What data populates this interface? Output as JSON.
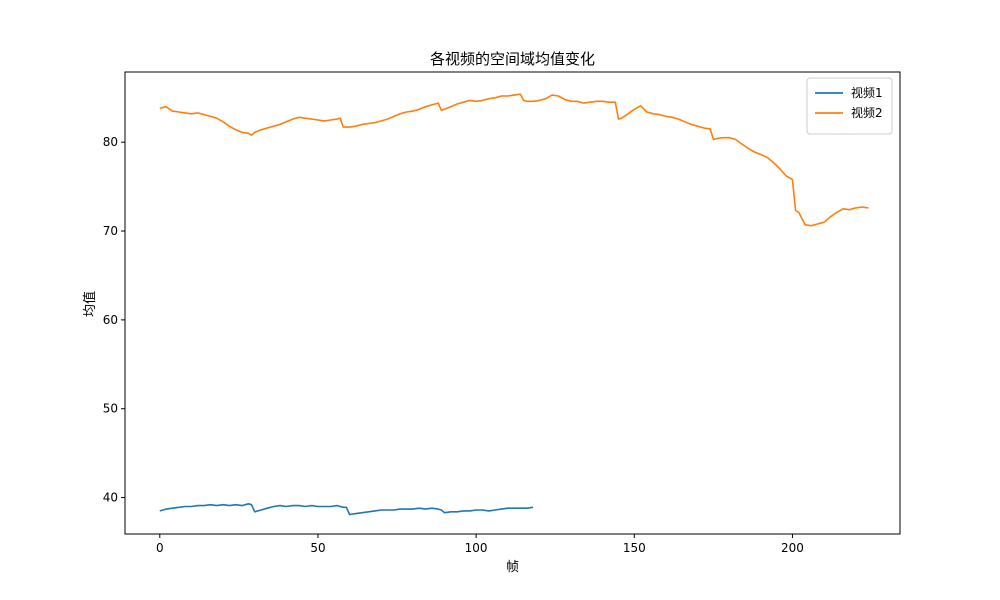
{
  "chart_data": {
    "type": "line",
    "title": "各视频的空间域均值变化",
    "xlabel": "帧",
    "ylabel": "均值",
    "xlim": [
      -11,
      234
    ],
    "ylim": [
      35.9,
      87.9
    ],
    "xticks": [
      0,
      50,
      100,
      150,
      200
    ],
    "yticks": [
      40,
      50,
      60,
      70,
      80
    ],
    "grid": false,
    "legend_position": "top-right",
    "series": [
      {
        "name": "视频1",
        "color": "#1f77b4",
        "x": [
          0,
          2,
          4,
          6,
          8,
          10,
          12,
          14,
          16,
          18,
          20,
          22,
          24,
          26,
          28,
          29,
          30,
          32,
          34,
          36,
          38,
          40,
          42,
          44,
          46,
          48,
          50,
          52,
          54,
          56,
          58,
          59,
          60,
          62,
          64,
          66,
          68,
          70,
          72,
          74,
          76,
          78,
          80,
          82,
          84,
          86,
          88,
          89,
          90,
          92,
          94,
          96,
          98,
          100,
          102,
          104,
          106,
          108,
          110,
          112,
          114,
          116,
          118
        ],
        "values": [
          38.5,
          38.7,
          38.8,
          38.9,
          39.0,
          39.0,
          39.1,
          39.1,
          39.2,
          39.1,
          39.2,
          39.1,
          39.2,
          39.1,
          39.3,
          39.2,
          38.4,
          38.6,
          38.8,
          39.0,
          39.1,
          39.0,
          39.1,
          39.1,
          39.0,
          39.1,
          39.0,
          39.0,
          39.0,
          39.1,
          38.9,
          38.9,
          38.1,
          38.2,
          38.3,
          38.4,
          38.5,
          38.6,
          38.6,
          38.6,
          38.7,
          38.7,
          38.7,
          38.8,
          38.7,
          38.8,
          38.7,
          38.6,
          38.3,
          38.4,
          38.4,
          38.5,
          38.5,
          38.6,
          38.6,
          38.5,
          38.6,
          38.7,
          38.8,
          38.8,
          38.8,
          38.8,
          38.9
        ]
      },
      {
        "name": "视频2",
        "color": "#ff7f0e",
        "x": [
          0,
          2,
          4,
          6,
          8,
          10,
          12,
          14,
          16,
          18,
          20,
          22,
          24,
          26,
          28,
          29,
          30,
          32,
          34,
          36,
          38,
          40,
          42,
          44,
          46,
          48,
          50,
          52,
          54,
          56,
          57,
          58,
          60,
          62,
          64,
          66,
          68,
          70,
          72,
          74,
          76,
          78,
          80,
          82,
          84,
          86,
          88,
          89,
          90,
          92,
          94,
          96,
          98,
          100,
          102,
          104,
          106,
          108,
          110,
          112,
          114,
          115,
          116,
          118,
          120,
          122,
          124,
          126,
          128,
          130,
          132,
          134,
          136,
          138,
          140,
          142,
          144,
          145,
          146,
          148,
          150,
          152,
          154,
          156,
          158,
          160,
          162,
          164,
          166,
          168,
          170,
          172,
          174,
          175,
          176,
          178,
          180,
          182,
          184,
          186,
          188,
          190,
          192,
          194,
          196,
          198,
          200,
          201,
          202,
          204,
          206,
          208,
          210,
          212,
          214,
          216,
          218,
          220,
          222,
          224
        ],
        "values": [
          83.8,
          84.0,
          83.5,
          83.4,
          83.3,
          83.2,
          83.3,
          83.1,
          82.9,
          82.7,
          82.3,
          81.8,
          81.4,
          81.1,
          81.0,
          80.8,
          81.1,
          81.4,
          81.6,
          81.8,
          82.0,
          82.3,
          82.6,
          82.8,
          82.7,
          82.6,
          82.5,
          82.4,
          82.5,
          82.6,
          82.7,
          81.7,
          81.7,
          81.8,
          82.0,
          82.1,
          82.2,
          82.4,
          82.6,
          82.9,
          83.2,
          83.4,
          83.5,
          83.7,
          84.0,
          84.2,
          84.4,
          83.6,
          83.7,
          84.0,
          84.3,
          84.5,
          84.7,
          84.6,
          84.7,
          84.9,
          85.0,
          85.2,
          85.2,
          85.3,
          85.4,
          84.7,
          84.6,
          84.6,
          84.7,
          84.9,
          85.3,
          85.2,
          84.8,
          84.6,
          84.6,
          84.4,
          84.5,
          84.6,
          84.6,
          84.5,
          84.5,
          82.6,
          82.7,
          83.2,
          83.7,
          84.1,
          83.4,
          83.2,
          83.1,
          82.9,
          82.8,
          82.6,
          82.3,
          82.0,
          81.8,
          81.6,
          81.5,
          80.3,
          80.4,
          80.5,
          80.5,
          80.3,
          79.8,
          79.3,
          78.9,
          78.6,
          78.3,
          77.7,
          77.0,
          76.2,
          75.8,
          72.3,
          72.1,
          70.7,
          70.6,
          70.8,
          71.0,
          71.6,
          72.1,
          72.5,
          72.4,
          72.6,
          72.7,
          72.6
        ]
      }
    ]
  }
}
